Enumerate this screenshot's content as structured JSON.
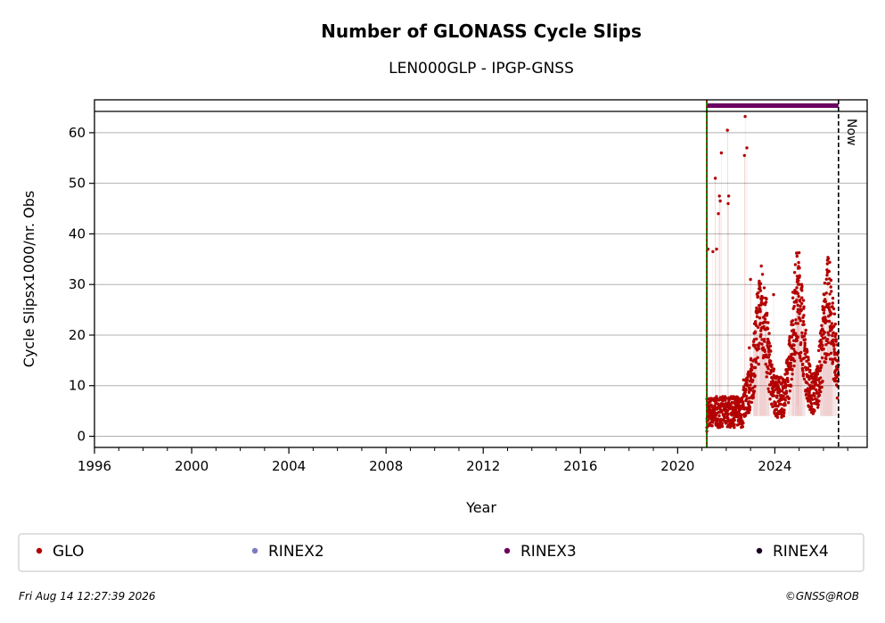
{
  "chart_data": {
    "type": "scatter",
    "title": "Number of GLONASS Cycle Slips",
    "subtitle": "LEN000GLP - IPGP-GNSS",
    "xlabel": "Year",
    "ylabel": "Cycle Slipsx1000/nr. Obs",
    "xlim": [
      1996,
      2027.8
    ],
    "ylim": [
      -2.2,
      66.5
    ],
    "xticks": [
      "1996",
      "2000",
      "2004",
      "2008",
      "2012",
      "2016",
      "2020",
      "2024"
    ],
    "yticks": [
      "0",
      "10",
      "20",
      "30",
      "40",
      "50",
      "60"
    ],
    "grid": "horizontal",
    "now_label": "Now",
    "now_x": 2026.62,
    "start_x": 2021.2,
    "rinex3_bar": {
      "x_start": 2021.2,
      "x_end": 2026.62
    },
    "series": [
      {
        "name": "GLO",
        "color": "#b30000",
        "seasonal_peaks": [
          {
            "x": 2023.45,
            "y": 22
          },
          {
            "x": 2024.95,
            "y": 24
          },
          {
            "x": 2026.2,
            "y": 22.5
          }
        ],
        "outliers": [
          {
            "x": 2021.25,
            "y": 37.0
          },
          {
            "x": 2021.45,
            "y": 36.5
          },
          {
            "x": 2021.55,
            "y": 51.0
          },
          {
            "x": 2021.6,
            "y": 37.0
          },
          {
            "x": 2021.68,
            "y": 44.0
          },
          {
            "x": 2021.72,
            "y": 47.5
          },
          {
            "x": 2021.75,
            "y": 46.5
          },
          {
            "x": 2021.8,
            "y": 56.0
          },
          {
            "x": 2022.05,
            "y": 60.5
          },
          {
            "x": 2022.08,
            "y": 46.0
          },
          {
            "x": 2022.1,
            "y": 47.5
          },
          {
            "x": 2022.75,
            "y": 55.5
          },
          {
            "x": 2022.78,
            "y": 63.2
          },
          {
            "x": 2022.85,
            "y": 57.0
          },
          {
            "x": 2023.0,
            "y": 31.0
          },
          {
            "x": 2023.95,
            "y": 28.0
          },
          {
            "x": 2024.9,
            "y": 28.5
          },
          {
            "x": 2024.95,
            "y": 28.2
          },
          {
            "x": 2022.95,
            "y": 17.5
          },
          {
            "x": 2021.2,
            "y": 1.0
          }
        ]
      }
    ],
    "legend": {
      "placement": "bottom",
      "items": [
        {
          "label": "GLO",
          "color": "#b30000"
        },
        {
          "label": "RINEX2",
          "color": "#7b7bbf"
        },
        {
          "label": "RINEX3",
          "color": "#6b0060"
        },
        {
          "label": "RINEX4",
          "color": "#1a0020"
        }
      ]
    }
  },
  "footer": {
    "timestamp": "Fri Aug 14 12:27:39 2026",
    "credit": "©GNSS@ROB"
  },
  "colors": {
    "green_marker": "#008000",
    "rinex3": "#6b0060"
  }
}
